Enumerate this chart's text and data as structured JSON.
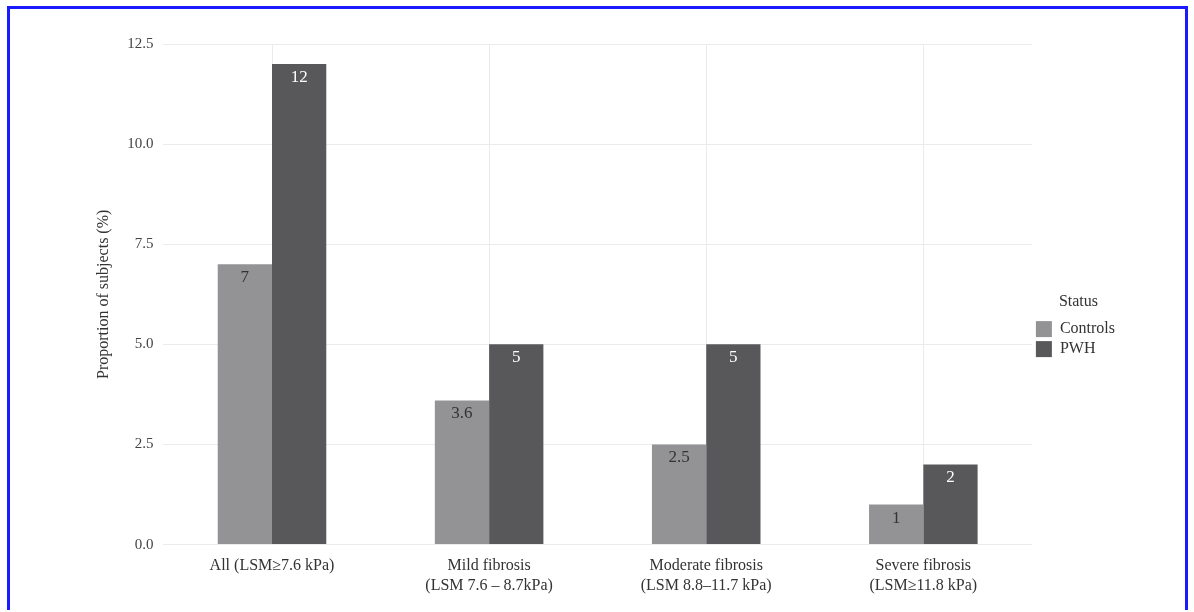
{
  "chart_data": {
    "type": "bar",
    "ylabel": "Proportion of subjects (%)",
    "legend_title": "Status",
    "categories": [
      "All (LSM≥7.6 kPa)",
      "Mild fibrosis\n(LSM 7.6 – 8.7kPa)",
      "Moderate fibrosis\n(LSM 8.8–11.7 kPa)",
      "Severe fibrosis\n(LSM≥11.8 kPa)"
    ],
    "series": [
      {
        "name": "Controls",
        "color": "#939396",
        "values": [
          7,
          3.6,
          2.5,
          1
        ]
      },
      {
        "name": "PWH",
        "color": "#58585b",
        "values": [
          12,
          5,
          5,
          2
        ]
      }
    ],
    "ylim": [
      0,
      12.5
    ],
    "yticks": [
      {
        "value": 0,
        "label": "0.0"
      },
      {
        "value": 2.5,
        "label": "2.5"
      },
      {
        "value": 5,
        "label": "5.0"
      },
      {
        "value": 7.5,
        "label": "7.5"
      },
      {
        "value": 10,
        "label": "10.0"
      },
      {
        "value": 12.5,
        "label": "12.5"
      }
    ],
    "grid": true,
    "legend": "right",
    "data_labels": true
  }
}
